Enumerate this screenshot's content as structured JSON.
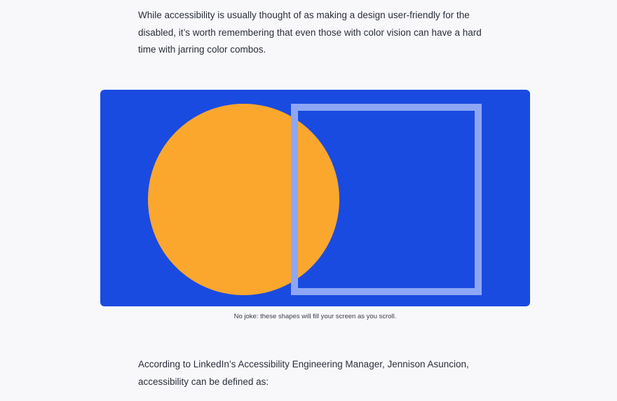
{
  "article": {
    "intro_paragraph": "While accessibility is usually thought of as making a design user-friendly for the disabled, it’s worth remembering that even those with color vision can have a hard time with jarring color combos.",
    "figure": {
      "colors": {
        "background": "#1a4be0",
        "circle": "#fba72e",
        "square_outline": "#8ea7f5"
      },
      "caption": "No joke: these shapes will fill your screen as you scroll."
    },
    "outro_paragraph": "According to LinkedIn’s Accessibility Engineering Manager, Jennison Asuncion, accessibility can be defined as:"
  }
}
